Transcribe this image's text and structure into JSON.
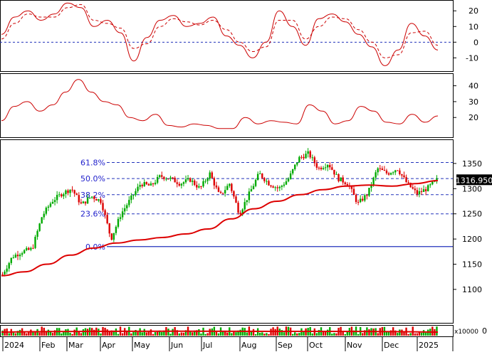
{
  "chart_data": [
    {
      "type": "line",
      "panel": "oscillator-1",
      "ylim": [
        -18,
        26
      ],
      "yticks": [
        "20",
        "10",
        "0",
        "-10"
      ],
      "reference_line": 0,
      "series": [
        {
          "style": "solid",
          "color": "#cc0000",
          "values": [
            5,
            16,
            20,
            14,
            18,
            25,
            22,
            10,
            14,
            6,
            -12,
            3,
            14,
            17,
            10,
            12,
            16,
            4,
            -2,
            -10,
            0,
            20,
            10,
            -2,
            15,
            18,
            13,
            5,
            -3,
            -15,
            -5,
            12,
            4,
            -5
          ]
        },
        {
          "style": "dashed",
          "color": "#cc0000",
          "values": [
            2,
            12,
            18,
            16,
            16,
            22,
            24,
            14,
            12,
            9,
            -4,
            -1,
            10,
            15,
            13,
            11,
            14,
            8,
            0,
            -6,
            -3,
            14,
            14,
            2,
            10,
            16,
            15,
            8,
            0,
            -10,
            -8,
            6,
            7,
            -2
          ]
        }
      ]
    },
    {
      "type": "line",
      "panel": "oscillator-2",
      "ylim": [
        8,
        47
      ],
      "yticks": [
        "40",
        "30",
        "20"
      ],
      "series": [
        {
          "style": "solid",
          "color": "#cc0000",
          "values": [
            18,
            27,
            30,
            24,
            28,
            36,
            44,
            36,
            30,
            28,
            20,
            18,
            22,
            15,
            14,
            16,
            15,
            13,
            13,
            20,
            16,
            18,
            17,
            16,
            28,
            24,
            16,
            18,
            27,
            24,
            17,
            16,
            22,
            17,
            21
          ]
        }
      ]
    },
    {
      "type": "candlestick",
      "panel": "price",
      "ylim": [
        1035,
        1395
      ],
      "yticks": [
        "1350",
        "1300",
        "1250",
        "1200",
        "1150",
        "1100"
      ],
      "last_price_label": "1316.950",
      "x_labels": [
        "2024",
        "Feb",
        "Mar",
        "Apr",
        "May",
        "Jun",
        "Jul",
        "Aug",
        "Sep",
        "Oct",
        "Nov",
        "Dec",
        "2025"
      ],
      "close_path": [
        1130,
        1165,
        1175,
        1180,
        1245,
        1275,
        1290,
        1300,
        1268,
        1285,
        1275,
        1200,
        1250,
        1280,
        1310,
        1305,
        1325,
        1320,
        1310,
        1318,
        1300,
        1330,
        1285,
        1310,
        1250,
        1290,
        1330,
        1310,
        1300,
        1320,
        1360,
        1370,
        1340,
        1350,
        1320,
        1310,
        1270,
        1290,
        1340,
        1330,
        1340,
        1310,
        1290,
        1300,
        1317
      ],
      "moving_average": [
        1127,
        1135,
        1150,
        1168,
        1182,
        1192,
        1198,
        1203,
        1210,
        1220,
        1240,
        1260,
        1275,
        1288,
        1298,
        1305,
        1307,
        1305,
        1310,
        1316
      ],
      "fibonacci": [
        {
          "label": "61.8%",
          "value": 1352
        },
        {
          "label": "50.0%",
          "value": 1320
        },
        {
          "label": "38.2%",
          "value": 1288
        },
        {
          "label": "23.6%",
          "value": 1250
        },
        {
          "label": "0.0%",
          "value": 1185
        }
      ]
    },
    {
      "type": "bar",
      "panel": "volume",
      "unit_label": "x10000",
      "ytick": "0"
    }
  ]
}
